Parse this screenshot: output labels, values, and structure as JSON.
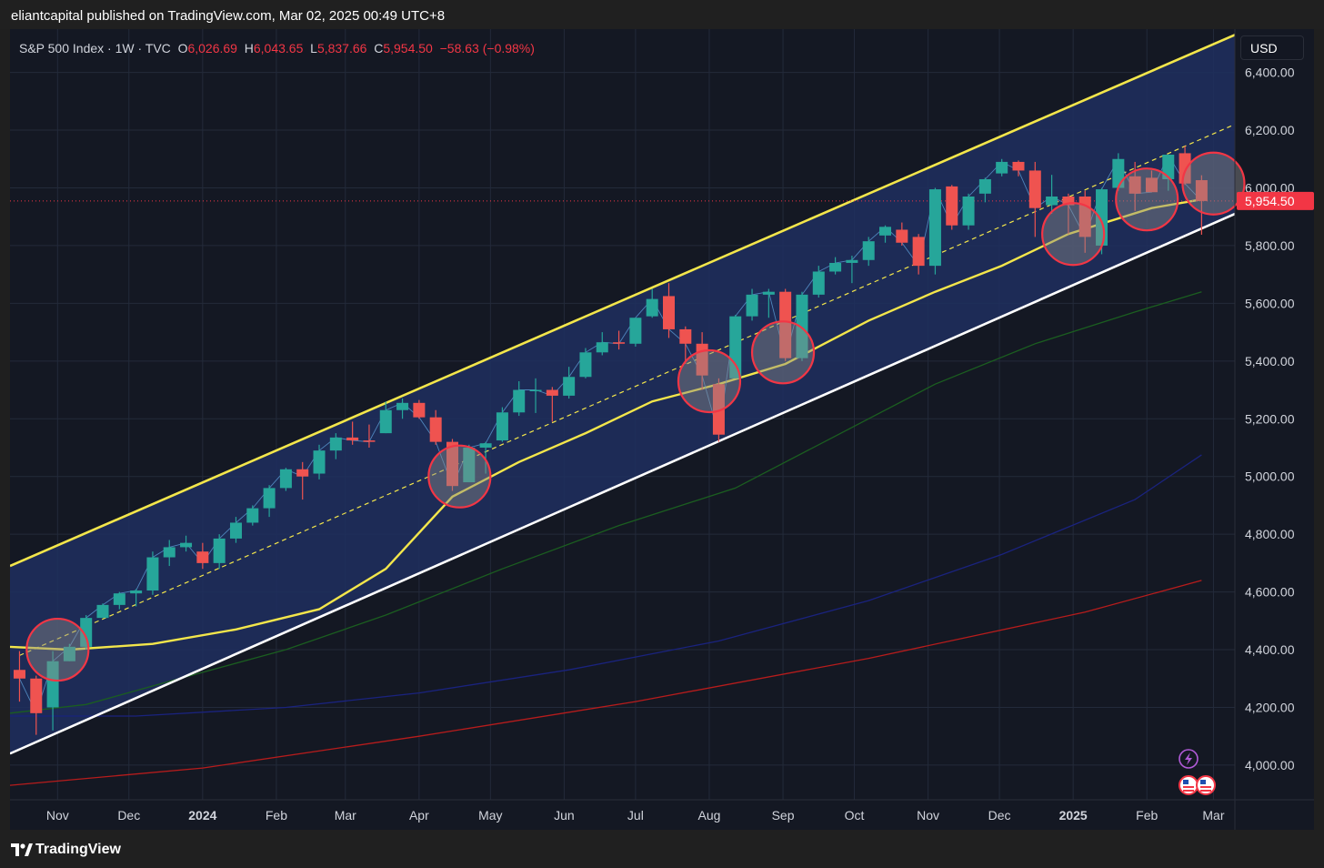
{
  "header": {
    "published_text": "eliantcapital published on TradingView.com, Mar 02, 2025 00:49 UTC+8"
  },
  "footer": {
    "brand_mark": "17",
    "brand": "TradingView"
  },
  "legend": {
    "symbol": "S&P 500 Index · 1W · TVC",
    "open_label": "O",
    "open": "6,026.69",
    "high_label": "H",
    "high": "6,043.65",
    "low_label": "L",
    "low": "5,837.66",
    "close_label": "C",
    "close": "5,954.50",
    "change": "−58.63 (−0.98%)"
  },
  "currency": "USD",
  "colors": {
    "up": "#26a69a",
    "down": "#ef5350",
    "channel_fill": "#1e2f5f",
    "channel_upper": "#f3e64b",
    "channel_lower": "#ffffff",
    "channel_mid": "#f3e64b",
    "ma_yellow": "#f3e64b",
    "ma_green": "#1b5e20",
    "ma_blue": "#1a237e",
    "ma_red": "#b71c1c",
    "price_label_bg": "#f23645",
    "background": "#141823"
  },
  "icons": [
    "lightning-icon",
    "us-flag-icon",
    "us-flag-icon"
  ],
  "chart_data": {
    "type": "candlestick",
    "symbol": "S&P 500 Index",
    "interval": "1W",
    "source": "TVC",
    "currency": "USD",
    "y_range": [
      3880,
      6550
    ],
    "y_ticks": [
      4000,
      4200,
      4400,
      4600,
      4800,
      5000,
      5200,
      5400,
      5600,
      5800,
      6000,
      6200,
      6400
    ],
    "y_tick_labels": [
      "4,000.00",
      "4,200.00",
      "4,400.00",
      "4,600.00",
      "4,800.00",
      "5,000.00",
      "5,200.00",
      "5,400.00",
      "5,600.00",
      "5,800.00",
      "6,000.00",
      "6,200.00",
      "6,400.00"
    ],
    "x_range": [
      "2023-10-12",
      "2025-03-10"
    ],
    "x_ticks": [
      {
        "date": "2023-11-01",
        "label": "Nov",
        "bold": false
      },
      {
        "date": "2023-12-01",
        "label": "Dec",
        "bold": false
      },
      {
        "date": "2024-01-01",
        "label": "2024",
        "bold": true
      },
      {
        "date": "2024-02-01",
        "label": "Feb",
        "bold": false
      },
      {
        "date": "2024-03-01",
        "label": "Mar",
        "bold": false
      },
      {
        "date": "2024-04-01",
        "label": "Apr",
        "bold": false
      },
      {
        "date": "2024-05-01",
        "label": "May",
        "bold": false
      },
      {
        "date": "2024-06-01",
        "label": "Jun",
        "bold": false
      },
      {
        "date": "2024-07-01",
        "label": "Jul",
        "bold": false
      },
      {
        "date": "2024-08-01",
        "label": "Aug",
        "bold": false
      },
      {
        "date": "2024-09-01",
        "label": "Sep",
        "bold": false
      },
      {
        "date": "2024-10-01",
        "label": "Oct",
        "bold": false
      },
      {
        "date": "2024-11-01",
        "label": "Nov",
        "bold": false
      },
      {
        "date": "2024-12-01",
        "label": "Dec",
        "bold": false
      },
      {
        "date": "2025-01-01",
        "label": "2025",
        "bold": true
      },
      {
        "date": "2025-02-01",
        "label": "Feb",
        "bold": false
      },
      {
        "date": "2025-03-01",
        "label": "Mar",
        "bold": false
      }
    ],
    "candles": [
      {
        "date": "2023-10-16",
        "o": 4330,
        "h": 4395,
        "l": 4220,
        "c": 4300
      },
      {
        "date": "2023-10-23",
        "o": 4300,
        "h": 4310,
        "l": 4105,
        "c": 4180
      },
      {
        "date": "2023-10-30",
        "o": 4200,
        "h": 4395,
        "l": 4120,
        "c": 4360
      },
      {
        "date": "2023-11-06",
        "o": 4360,
        "h": 4420,
        "l": 4360,
        "c": 4410
      },
      {
        "date": "2023-11-13",
        "o": 4410,
        "h": 4520,
        "l": 4400,
        "c": 4510
      },
      {
        "date": "2023-11-20",
        "o": 4510,
        "h": 4560,
        "l": 4510,
        "c": 4555
      },
      {
        "date": "2023-11-27",
        "o": 4555,
        "h": 4600,
        "l": 4540,
        "c": 4595
      },
      {
        "date": "2023-12-04",
        "o": 4595,
        "h": 4610,
        "l": 4550,
        "c": 4605
      },
      {
        "date": "2023-12-11",
        "o": 4605,
        "h": 4740,
        "l": 4590,
        "c": 4720
      },
      {
        "date": "2023-12-18",
        "o": 4720,
        "h": 4780,
        "l": 4690,
        "c": 4755
      },
      {
        "date": "2023-12-25",
        "o": 4755,
        "h": 4795,
        "l": 4740,
        "c": 4770
      },
      {
        "date": "2024-01-01",
        "o": 4740,
        "h": 4770,
        "l": 4680,
        "c": 4700
      },
      {
        "date": "2024-01-08",
        "o": 4700,
        "h": 4800,
        "l": 4680,
        "c": 4785
      },
      {
        "date": "2024-01-15",
        "o": 4785,
        "h": 4860,
        "l": 4770,
        "c": 4840
      },
      {
        "date": "2024-01-22",
        "o": 4840,
        "h": 4900,
        "l": 4830,
        "c": 4890
      },
      {
        "date": "2024-01-29",
        "o": 4890,
        "h": 4970,
        "l": 4860,
        "c": 4960
      },
      {
        "date": "2024-02-05",
        "o": 4960,
        "h": 5030,
        "l": 4950,
        "c": 5025
      },
      {
        "date": "2024-02-12",
        "o": 5025,
        "h": 5050,
        "l": 4920,
        "c": 5000
      },
      {
        "date": "2024-02-19",
        "o": 5010,
        "h": 5110,
        "l": 4990,
        "c": 5090
      },
      {
        "date": "2024-02-26",
        "o": 5090,
        "h": 5150,
        "l": 5060,
        "c": 5135
      },
      {
        "date": "2024-03-04",
        "o": 5135,
        "h": 5190,
        "l": 5110,
        "c": 5125
      },
      {
        "date": "2024-03-11",
        "o": 5125,
        "h": 5180,
        "l": 5100,
        "c": 5120
      },
      {
        "date": "2024-03-18",
        "o": 5150,
        "h": 5260,
        "l": 5150,
        "c": 5230
      },
      {
        "date": "2024-03-25",
        "o": 5230,
        "h": 5270,
        "l": 5200,
        "c": 5255
      },
      {
        "date": "2024-04-01",
        "o": 5255,
        "h": 5265,
        "l": 5200,
        "c": 5205
      },
      {
        "date": "2024-04-08",
        "o": 5205,
        "h": 5230,
        "l": 5110,
        "c": 5120
      },
      {
        "date": "2024-04-15",
        "o": 5120,
        "h": 5130,
        "l": 4950,
        "c": 4967
      },
      {
        "date": "2024-04-22",
        "o": 4980,
        "h": 5110,
        "l": 4980,
        "c": 5100
      },
      {
        "date": "2024-04-29",
        "o": 5100,
        "h": 5120,
        "l": 5010,
        "c": 5115
      },
      {
        "date": "2024-05-06",
        "o": 5125,
        "h": 5240,
        "l": 5120,
        "c": 5222
      },
      {
        "date": "2024-05-13",
        "o": 5222,
        "h": 5330,
        "l": 5210,
        "c": 5300
      },
      {
        "date": "2024-05-20",
        "o": 5300,
        "h": 5340,
        "l": 5220,
        "c": 5300
      },
      {
        "date": "2024-05-27",
        "o": 5300,
        "h": 5310,
        "l": 5190,
        "c": 5280
      },
      {
        "date": "2024-06-03",
        "o": 5280,
        "h": 5380,
        "l": 5270,
        "c": 5345
      },
      {
        "date": "2024-06-10",
        "o": 5345,
        "h": 5445,
        "l": 5340,
        "c": 5430
      },
      {
        "date": "2024-06-17",
        "o": 5430,
        "h": 5500,
        "l": 5420,
        "c": 5465
      },
      {
        "date": "2024-06-24",
        "o": 5465,
        "h": 5505,
        "l": 5440,
        "c": 5460
      },
      {
        "date": "2024-07-01",
        "o": 5460,
        "h": 5550,
        "l": 5450,
        "c": 5550
      },
      {
        "date": "2024-07-08",
        "o": 5555,
        "h": 5650,
        "l": 5550,
        "c": 5615
      },
      {
        "date": "2024-07-15",
        "o": 5625,
        "h": 5670,
        "l": 5480,
        "c": 5510
      },
      {
        "date": "2024-07-22",
        "o": 5510,
        "h": 5520,
        "l": 5390,
        "c": 5460
      },
      {
        "date": "2024-07-29",
        "o": 5460,
        "h": 5500,
        "l": 5300,
        "c": 5350
      },
      {
        "date": "2024-08-05",
        "o": 5320,
        "h": 5340,
        "l": 5120,
        "c": 5145
      },
      {
        "date": "2024-08-12",
        "o": 5340,
        "h": 5560,
        "l": 5340,
        "c": 5555
      },
      {
        "date": "2024-08-19",
        "o": 5555,
        "h": 5650,
        "l": 5540,
        "c": 5630
      },
      {
        "date": "2024-08-26",
        "o": 5630,
        "h": 5650,
        "l": 5550,
        "c": 5640
      },
      {
        "date": "2024-09-02",
        "o": 5640,
        "h": 5650,
        "l": 5400,
        "c": 5410
      },
      {
        "date": "2024-09-09",
        "o": 5410,
        "h": 5640,
        "l": 5400,
        "c": 5630
      },
      {
        "date": "2024-09-16",
        "o": 5630,
        "h": 5730,
        "l": 5620,
        "c": 5710
      },
      {
        "date": "2024-09-23",
        "o": 5710,
        "h": 5760,
        "l": 5700,
        "c": 5740
      },
      {
        "date": "2024-09-30",
        "o": 5740,
        "h": 5765,
        "l": 5670,
        "c": 5750
      },
      {
        "date": "2024-10-07",
        "o": 5750,
        "h": 5830,
        "l": 5730,
        "c": 5815
      },
      {
        "date": "2024-10-14",
        "o": 5835,
        "h": 5870,
        "l": 5810,
        "c": 5865
      },
      {
        "date": "2024-10-21",
        "o": 5855,
        "h": 5880,
        "l": 5800,
        "c": 5810
      },
      {
        "date": "2024-10-28",
        "o": 5830,
        "h": 5840,
        "l": 5700,
        "c": 5730
      },
      {
        "date": "2024-11-04",
        "o": 5730,
        "h": 6000,
        "l": 5700,
        "c": 5995
      },
      {
        "date": "2024-11-11",
        "o": 6005,
        "h": 6010,
        "l": 5855,
        "c": 5870
      },
      {
        "date": "2024-11-18",
        "o": 5870,
        "h": 5980,
        "l": 5855,
        "c": 5970
      },
      {
        "date": "2024-11-25",
        "o": 5980,
        "h": 6035,
        "l": 5950,
        "c": 6030
      },
      {
        "date": "2024-12-02",
        "o": 6050,
        "h": 6100,
        "l": 6040,
        "c": 6090
      },
      {
        "date": "2024-12-09",
        "o": 6090,
        "h": 6095,
        "l": 6040,
        "c": 6060
      },
      {
        "date": "2024-12-16",
        "o": 6060,
        "h": 6090,
        "l": 5830,
        "c": 5930
      },
      {
        "date": "2024-12-23",
        "o": 5940,
        "h": 6045,
        "l": 5910,
        "c": 5970
      },
      {
        "date": "2024-12-30",
        "o": 5970,
        "h": 5980,
        "l": 5840,
        "c": 5940
      },
      {
        "date": "2025-01-06",
        "o": 5970,
        "h": 5990,
        "l": 5775,
        "c": 5830
      },
      {
        "date": "2025-01-13",
        "o": 5800,
        "h": 6000,
        "l": 5770,
        "c": 5995
      },
      {
        "date": "2025-01-20",
        "o": 6000,
        "h": 6120,
        "l": 5990,
        "c": 6100
      },
      {
        "date": "2025-01-27",
        "o": 6040,
        "h": 6090,
        "l": 5920,
        "c": 5980
      },
      {
        "date": "2025-02-03",
        "o": 6035,
        "h": 6060,
        "l": 5985,
        "c": 5985
      },
      {
        "date": "2025-02-10",
        "o": 6030,
        "h": 6110,
        "l": 5990,
        "c": 6115
      },
      {
        "date": "2025-02-17",
        "o": 6120,
        "h": 6145,
        "l": 6010,
        "c": 6015
      },
      {
        "date": "2025-02-24",
        "o": 6026.69,
        "h": 6043.65,
        "l": 5837.66,
        "c": 5954.5
      }
    ],
    "moving_averages": [
      {
        "color": "yellow",
        "points": [
          [
            "2023-10-12",
            4410
          ],
          [
            "2023-11-06",
            4400
          ],
          [
            "2023-12-11",
            4420
          ],
          [
            "2024-01-15",
            4470
          ],
          [
            "2024-02-19",
            4540
          ],
          [
            "2024-03-18",
            4680
          ],
          [
            "2024-04-15",
            4930
          ],
          [
            "2024-05-13",
            5050
          ],
          [
            "2024-06-10",
            5150
          ],
          [
            "2024-07-08",
            5260
          ],
          [
            "2024-08-05",
            5320
          ],
          [
            "2024-09-02",
            5390
          ],
          [
            "2024-10-07",
            5540
          ],
          [
            "2024-11-04",
            5640
          ],
          [
            "2024-12-02",
            5730
          ],
          [
            "2024-12-30",
            5840
          ],
          [
            "2025-02-03",
            5930
          ],
          [
            "2025-02-24",
            5960
          ]
        ]
      },
      {
        "color": "green",
        "points": [
          [
            "2023-10-12",
            4180
          ],
          [
            "2023-11-13",
            4210
          ],
          [
            "2023-12-18",
            4290
          ],
          [
            "2024-02-05",
            4400
          ],
          [
            "2024-03-18",
            4520
          ],
          [
            "2024-05-06",
            4680
          ],
          [
            "2024-06-24",
            4830
          ],
          [
            "2024-08-12",
            4960
          ],
          [
            "2024-09-23",
            5140
          ],
          [
            "2024-11-04",
            5320
          ],
          [
            "2024-12-16",
            5460
          ],
          [
            "2025-01-27",
            5570
          ],
          [
            "2025-02-24",
            5640
          ]
        ]
      },
      {
        "color": "blue",
        "points": [
          [
            "2023-10-12",
            4170
          ],
          [
            "2023-12-04",
            4170
          ],
          [
            "2024-02-05",
            4200
          ],
          [
            "2024-04-01",
            4250
          ],
          [
            "2024-06-03",
            4330
          ],
          [
            "2024-08-05",
            4430
          ],
          [
            "2024-10-07",
            4570
          ],
          [
            "2024-12-02",
            4730
          ],
          [
            "2025-01-27",
            4920
          ],
          [
            "2025-02-24",
            5075
          ]
        ]
      },
      {
        "color": "red",
        "points": [
          [
            "2023-10-12",
            3930
          ],
          [
            "2024-01-01",
            3990
          ],
          [
            "2024-04-01",
            4100
          ],
          [
            "2024-07-01",
            4220
          ],
          [
            "2024-10-07",
            4370
          ],
          [
            "2025-01-06",
            4530
          ],
          [
            "2025-02-24",
            4640
          ]
        ]
      }
    ],
    "channel": {
      "upper": [
        [
          "2023-10-12",
          4690
        ],
        [
          "2025-03-10",
          6530
        ]
      ],
      "lower": [
        [
          "2023-10-12",
          4040
        ],
        [
          "2025-03-10",
          5910
        ]
      ],
      "middle": [
        [
          "2023-10-16",
          4380
        ],
        [
          "2025-03-10",
          6220
        ]
      ]
    },
    "highlight_circles": [
      {
        "date": "2023-11-01",
        "price": 4400
      },
      {
        "date": "2024-04-18",
        "price": 5000
      },
      {
        "date": "2024-08-01",
        "price": 5330
      },
      {
        "date": "2024-09-01",
        "price": 5430
      },
      {
        "date": "2025-01-01",
        "price": 5840
      },
      {
        "date": "2025-02-01",
        "price": 5960
      },
      {
        "date": "2025-03-01",
        "price": 6015
      }
    ],
    "last_price": 5954.5,
    "last_price_label": "5,954.50"
  }
}
